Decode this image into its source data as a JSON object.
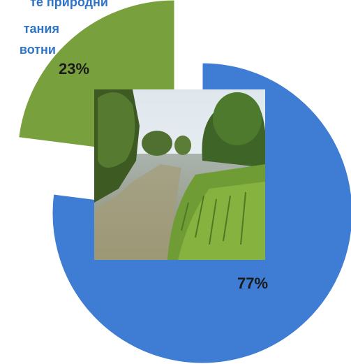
{
  "chart_data": {
    "type": "pie",
    "title_lines": [
      "те природни",
      "тания",
      "вотни"
    ],
    "categories": [
      null,
      null
    ],
    "values": [
      77,
      23
    ],
    "value_labels": [
      "77%",
      "23%"
    ],
    "colors": [
      "#3e7dd3",
      "#78a03c"
    ]
  }
}
